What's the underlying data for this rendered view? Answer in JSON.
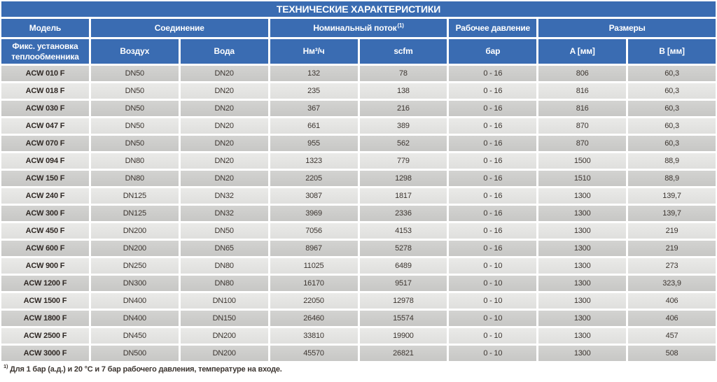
{
  "title": "ТЕХНИЧЕСКИЕ ХАРАКТЕРИСТИКИ",
  "header": {
    "groups": [
      {
        "label": "Модель",
        "sup": ""
      },
      {
        "label": "Соединение",
        "sup": ""
      },
      {
        "label": "Номинальный поток",
        "sup": "(1)"
      },
      {
        "label": "Рабочее давление",
        "sup": ""
      },
      {
        "label": "Размеры",
        "sup": ""
      }
    ],
    "columns": [
      "Фикс. установка теплообменника",
      "Воздух",
      "Вода",
      "Нм³/ч",
      "scfm",
      "бар",
      "A [мм]",
      "B [мм]"
    ]
  },
  "rows": [
    [
      "ACW 010 F",
      "DN50",
      "DN20",
      "132",
      "78",
      "0 - 16",
      "806",
      "60,3"
    ],
    [
      "ACW 018 F",
      "DN50",
      "DN20",
      "235",
      "138",
      "0 - 16",
      "816",
      "60,3"
    ],
    [
      "ACW 030 F",
      "DN50",
      "DN20",
      "367",
      "216",
      "0 - 16",
      "816",
      "60,3"
    ],
    [
      "ACW 047 F",
      "DN50",
      "DN20",
      "661",
      "389",
      "0 - 16",
      "870",
      "60,3"
    ],
    [
      "ACW 070 F",
      "DN50",
      "DN20",
      "955",
      "562",
      "0 - 16",
      "870",
      "60,3"
    ],
    [
      "ACW 094 F",
      "DN80",
      "DN20",
      "1323",
      "779",
      "0 - 16",
      "1500",
      "88,9"
    ],
    [
      "ACW 150 F",
      "DN80",
      "DN20",
      "2205",
      "1298",
      "0 - 16",
      "1510",
      "88,9"
    ],
    [
      "ACW 240 F",
      "DN125",
      "DN32",
      "3087",
      "1817",
      "0 - 16",
      "1300",
      "139,7"
    ],
    [
      "ACW 300 F",
      "DN125",
      "DN32",
      "3969",
      "2336",
      "0 - 16",
      "1300",
      "139,7"
    ],
    [
      "ACW 450 F",
      "DN200",
      "DN50",
      "7056",
      "4153",
      "0 - 16",
      "1300",
      "219"
    ],
    [
      "ACW 600 F",
      "DN200",
      "DN65",
      "8967",
      "5278",
      "0 - 16",
      "1300",
      "219"
    ],
    [
      "ACW 900 F",
      "DN250",
      "DN80",
      "11025",
      "6489",
      "0 - 10",
      "1300",
      "273"
    ],
    [
      "ACW 1200 F",
      "DN300",
      "DN80",
      "16170",
      "9517",
      "0 - 10",
      "1300",
      "323,9"
    ],
    [
      "ACW 1500 F",
      "DN400",
      "DN100",
      "22050",
      "12978",
      "0 - 10",
      "1300",
      "406"
    ],
    [
      "ACW 1800 F",
      "DN400",
      "DN150",
      "26460",
      "15574",
      "0 - 10",
      "1300",
      "406"
    ],
    [
      "ACW 2500 F",
      "DN450",
      "DN200",
      "33810",
      "19900",
      "0 - 10",
      "1300",
      "457"
    ],
    [
      "ACW 3000 F",
      "DN500",
      "DN200",
      "45570",
      "26821",
      "0 - 10",
      "1300",
      "508"
    ]
  ],
  "footnote": {
    "marker": "1)",
    "text": " Для 1 бар (а.д.) и 20 °C и 7 бар рабочего давления, температуре на входе."
  },
  "colors": {
    "header_blue": "#3a6cb2",
    "row_dark": "#c8c8c6",
    "row_light": "#e3e3e1",
    "text_dark": "#3c3530"
  }
}
